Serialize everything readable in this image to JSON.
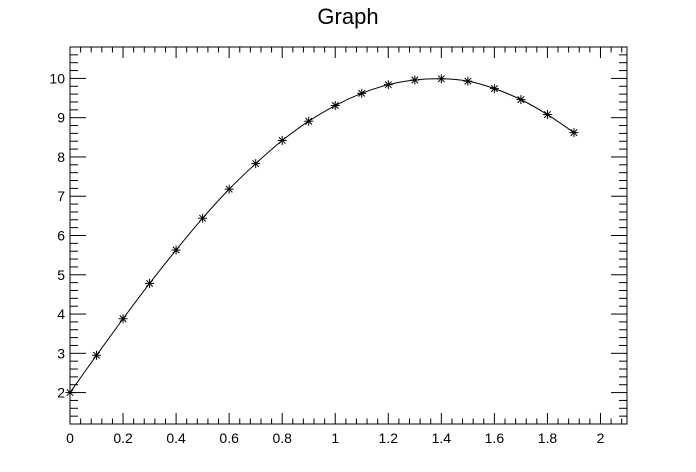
{
  "chart_data": {
    "type": "line",
    "title": "Graph",
    "xlabel": "",
    "ylabel": "",
    "xlim": [
      0,
      2.1
    ],
    "ylim": [
      1.2,
      10.8
    ],
    "x_ticks": [
      0,
      0.2,
      0.4,
      0.6,
      0.8,
      1,
      1.2,
      1.4,
      1.6,
      1.8,
      2
    ],
    "x_tick_labels": [
      "0",
      "0.2",
      "0.4",
      "0.6",
      "0.8",
      "1",
      "1.2",
      "1.4",
      "1.6",
      "1.8",
      "2"
    ],
    "y_ticks": [
      2,
      3,
      4,
      5,
      6,
      7,
      8,
      9,
      10
    ],
    "y_tick_labels": [
      "2",
      "3",
      "4",
      "5",
      "6",
      "7",
      "8",
      "9",
      "10"
    ],
    "grid": false,
    "marker": "asterisk",
    "line_color": "#000000",
    "series": [
      {
        "x": [
          0,
          0.1,
          0.2,
          0.3,
          0.4,
          0.5,
          0.6,
          0.7,
          0.8,
          0.9,
          1.0,
          1.1,
          1.2,
          1.3,
          1.4,
          1.5,
          1.6,
          1.7,
          1.8,
          1.9
        ],
        "values": [
          2.0,
          2.95,
          3.88,
          4.78,
          5.63,
          6.44,
          7.18,
          7.83,
          8.42,
          8.91,
          9.31,
          9.62,
          9.84,
          9.96,
          9.99,
          9.93,
          9.74,
          9.46,
          9.08,
          8.62
        ]
      }
    ]
  }
}
